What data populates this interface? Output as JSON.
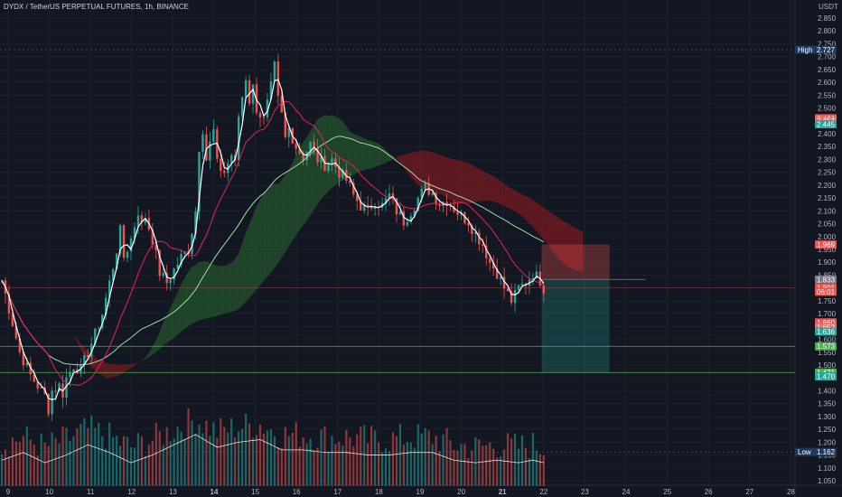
{
  "header": {
    "title": "DYDX / TetherUS PERPETUAL FUTURES, 1h, BINANCE",
    "currency": "USDT"
  },
  "colors": {
    "background": "#131722",
    "up": "#26a69a",
    "down": "#ef5350",
    "ma_fast": "#ffffff",
    "ma_mid": "#e91e63",
    "ma_slow": "#a5d6a7",
    "cloud_bull": "#2e7d32",
    "cloud_bear": "#b71c1c",
    "target_zone": "#26a69a",
    "stop_zone": "#ef5350",
    "level_line": "#4caf50"
  },
  "chart_data": {
    "type": "candlestick",
    "symbol": "DYDX / TetherUS PERPETUAL FUTURES",
    "interval": "1h",
    "exchange": "BINANCE",
    "ylim": [
      1.03,
      2.88
    ],
    "y_ticks": [
      "2.850",
      "2.800",
      "2.750",
      "2.700",
      "2.650",
      "2.600",
      "2.550",
      "2.500",
      "2.450",
      "2.400",
      "2.350",
      "2.300",
      "2.250",
      "2.200",
      "2.150",
      "2.100",
      "2.050",
      "2.000",
      "1.950",
      "1.900",
      "1.850",
      "1.800",
      "1.750",
      "1.700",
      "1.650",
      "1.600",
      "1.550",
      "1.500",
      "1.450",
      "1.400",
      "1.350",
      "1.300",
      "1.250",
      "1.200",
      "1.150",
      "1.100",
      "1.050"
    ],
    "x_ticks": [
      "9",
      "10",
      "11",
      "12",
      "13",
      "14",
      "15",
      "16",
      "17",
      "18",
      "19",
      "20",
      "21",
      "22",
      "23",
      "24",
      "25",
      "26",
      "27",
      "28"
    ],
    "bold_x_ticks": [
      "14",
      "21"
    ],
    "price_path": [
      [
        0,
        1.83
      ],
      [
        2,
        1.72
      ],
      [
        5,
        1.55
      ],
      [
        8,
        1.46
      ],
      [
        10,
        1.42
      ],
      [
        12,
        1.38
      ],
      [
        13,
        1.33
      ],
      [
        14,
        1.4
      ],
      [
        16,
        1.42
      ],
      [
        17,
        1.39
      ],
      [
        18,
        1.45
      ],
      [
        20,
        1.5
      ],
      [
        22,
        1.48
      ],
      [
        24,
        1.55
      ],
      [
        26,
        1.62
      ],
      [
        28,
        1.7
      ],
      [
        30,
        1.82
      ],
      [
        32,
        1.95
      ],
      [
        33,
        2.02
      ],
      [
        34,
        1.92
      ],
      [
        36,
        1.99
      ],
      [
        38,
        2.1
      ],
      [
        39,
        2.04
      ],
      [
        40,
        2.08
      ],
      [
        42,
        1.99
      ],
      [
        44,
        1.86
      ],
      [
        46,
        1.82
      ],
      [
        48,
        1.87
      ],
      [
        50,
        1.92
      ],
      [
        52,
        1.95
      ],
      [
        54,
        2.1
      ],
      [
        55,
        2.35
      ],
      [
        56,
        2.42
      ],
      [
        57,
        2.3
      ],
      [
        58,
        2.36
      ],
      [
        59,
        2.41
      ],
      [
        60,
        2.28
      ],
      [
        62,
        2.25
      ],
      [
        64,
        2.32
      ],
      [
        65,
        2.28
      ],
      [
        66,
        2.47
      ],
      [
        68,
        2.62
      ],
      [
        69,
        2.53
      ],
      [
        70,
        2.58
      ],
      [
        71,
        2.5
      ],
      [
        73,
        2.45
      ],
      [
        75,
        2.58
      ],
      [
        76,
        2.66
      ],
      [
        77,
        2.53
      ],
      [
        78,
        2.47
      ],
      [
        79,
        2.38
      ],
      [
        80,
        2.42
      ],
      [
        82,
        2.35
      ],
      [
        84,
        2.31
      ],
      [
        86,
        2.36
      ],
      [
        88,
        2.3
      ],
      [
        90,
        2.28
      ],
      [
        92,
        2.3
      ],
      [
        94,
        2.25
      ],
      [
        96,
        2.22
      ],
      [
        98,
        2.16
      ],
      [
        100,
        2.12
      ],
      [
        102,
        2.1
      ],
      [
        104,
        2.14
      ],
      [
        106,
        2.12
      ],
      [
        108,
        2.16
      ],
      [
        110,
        2.1
      ],
      [
        112,
        2.06
      ],
      [
        114,
        2.1
      ],
      [
        116,
        2.15
      ],
      [
        118,
        2.19
      ],
      [
        120,
        2.17
      ],
      [
        122,
        2.13
      ],
      [
        124,
        2.14
      ],
      [
        126,
        2.11
      ],
      [
        128,
        2.08
      ],
      [
        130,
        2.06
      ],
      [
        132,
        2.01
      ],
      [
        134,
        1.97
      ],
      [
        136,
        1.9
      ],
      [
        138,
        1.86
      ],
      [
        140,
        1.8
      ],
      [
        142,
        1.75
      ],
      [
        143,
        1.77
      ],
      [
        144,
        1.8
      ],
      [
        146,
        1.82
      ],
      [
        148,
        1.86
      ],
      [
        150,
        1.83
      ],
      [
        151,
        1.8
      ]
    ],
    "volume_envelope": [
      [
        0,
        1.13
      ],
      [
        6,
        1.16
      ],
      [
        12,
        1.12
      ],
      [
        18,
        1.15
      ],
      [
        24,
        1.19
      ],
      [
        30,
        1.16
      ],
      [
        36,
        1.12
      ],
      [
        42,
        1.15
      ],
      [
        48,
        1.19
      ],
      [
        54,
        1.23
      ],
      [
        60,
        1.18
      ],
      [
        66,
        1.2
      ],
      [
        72,
        1.21
      ],
      [
        78,
        1.17
      ],
      [
        84,
        1.17
      ],
      [
        90,
        1.16
      ],
      [
        96,
        1.16
      ],
      [
        102,
        1.15
      ],
      [
        108,
        1.15
      ],
      [
        114,
        1.16
      ],
      [
        120,
        1.16
      ],
      [
        126,
        1.13
      ],
      [
        132,
        1.12
      ],
      [
        138,
        1.13
      ],
      [
        144,
        1.12
      ],
      [
        148,
        1.13
      ],
      [
        151,
        1.12
      ]
    ],
    "ma_fast_label": "",
    "series": [],
    "price_tags": [
      {
        "value": "2.727",
        "label": "High"
      },
      {
        "value": "2.460"
      },
      {
        "value": "2.454"
      },
      {
        "value": "2.445"
      },
      {
        "value": "1.969"
      },
      {
        "value": "1.833"
      },
      {
        "value": "1.801"
      },
      {
        "value": "06:01"
      },
      {
        "value": "1.660"
      },
      {
        "value": "1.652"
      },
      {
        "value": "1.636"
      },
      {
        "value": "1.573"
      },
      {
        "value": "1.471"
      },
      {
        "value": "1.470"
      },
      {
        "value": "1.162",
        "label": "Low"
      }
    ],
    "trade_box": {
      "entry": 1.833,
      "stop": 1.969,
      "target": 1.471
    },
    "horizontal_levels": [
      1.573,
      1.471,
      1.801
    ]
  }
}
